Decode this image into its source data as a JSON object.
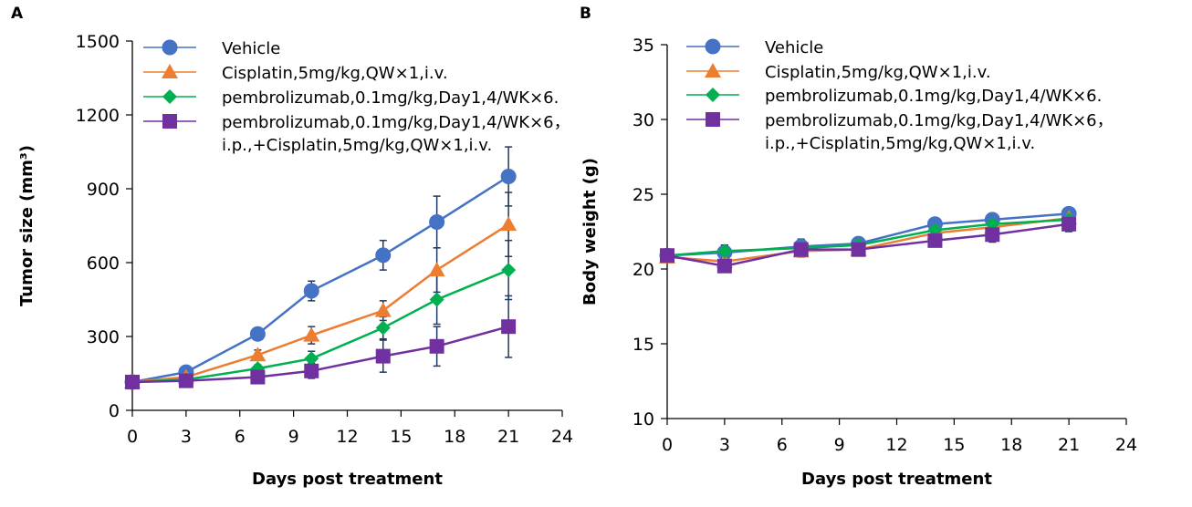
{
  "colors": {
    "series": [
      "#4472C4",
      "#ED7D31",
      "#00B050",
      "#7030A0"
    ],
    "error_bars": "#1F3864",
    "axis": "#000000"
  },
  "chart_data": [
    {
      "panel_label": "A",
      "type": "line",
      "xlabel": "Days post treatment",
      "ylabel": "Tumor size (mm³)",
      "xlim": [
        0,
        24
      ],
      "ylim": [
        0,
        1500
      ],
      "xticks": [
        "0",
        "3",
        "6",
        "9",
        "12",
        "15",
        "18",
        "21",
        "24"
      ],
      "yticks": [
        "0",
        "300",
        "600",
        "900",
        "1200",
        "1500"
      ],
      "grid": false,
      "legend_position": "top",
      "x": [
        0,
        3,
        7,
        10,
        14,
        17,
        21
      ],
      "series": [
        {
          "name": "Vehicle",
          "marker": "circle",
          "values": [
            115,
            155,
            310,
            485,
            630,
            765,
            950
          ],
          "errors": [
            8,
            12,
            18,
            40,
            60,
            105,
            120
          ]
        },
        {
          "name": "Cisplatin,5mg/kg,QW×1,i.v.",
          "marker": "triangle",
          "values": [
            115,
            135,
            225,
            305,
            405,
            570,
            755
          ],
          "errors": [
            8,
            10,
            20,
            35,
            40,
            90,
            130
          ]
        },
        {
          "name": "pembrolizumab,0.1mg/kg,Day1,4/WK×6.",
          "marker": "diamond",
          "values": [
            115,
            125,
            170,
            210,
            335,
            450,
            570
          ],
          "errors": [
            8,
            10,
            15,
            30,
            45,
            100,
            120
          ]
        },
        {
          "name": "pembrolizumab,0.1mg/kg,Day1,4/WK×6，\ni.p.,+Cisplatin,5mg/kg,QW×1,i.v.",
          "marker": "square",
          "values": [
            115,
            120,
            135,
            160,
            220,
            260,
            340
          ],
          "errors": [
            8,
            10,
            15,
            30,
            65,
            80,
            125
          ]
        }
      ]
    },
    {
      "panel_label": "B",
      "type": "line",
      "xlabel": "Days post treatment",
      "ylabel": "Body weight (g)",
      "xlim": [
        0,
        24
      ],
      "ylim": [
        10,
        35
      ],
      "xticks": [
        "0",
        "3",
        "6",
        "9",
        "12",
        "15",
        "18",
        "21",
        "24"
      ],
      "yticks": [
        "10",
        "15",
        "20",
        "25",
        "30",
        "35"
      ],
      "grid": false,
      "legend_position": "top",
      "x": [
        0,
        3,
        7,
        10,
        14,
        17,
        21
      ],
      "series": [
        {
          "name": "Vehicle",
          "marker": "circle",
          "values": [
            20.9,
            21.1,
            21.5,
            21.7,
            23.0,
            23.3,
            23.7
          ],
          "errors": [
            0.2,
            0.5,
            0.5,
            0.3,
            0.4,
            0.4,
            0.4
          ]
        },
        {
          "name": "Cisplatin,5mg/kg,QW×1,i.v.",
          "marker": "triangle",
          "values": [
            20.8,
            20.5,
            21.2,
            21.3,
            22.4,
            22.8,
            23.4
          ],
          "errors": [
            0.2,
            0.4,
            0.4,
            0.3,
            0.4,
            0.4,
            0.5
          ]
        },
        {
          "name": "pembrolizumab,0.1mg/kg,Day1,4/WK×6.",
          "marker": "diamond",
          "values": [
            20.9,
            21.2,
            21.4,
            21.6,
            22.6,
            23.0,
            23.3
          ],
          "errors": [
            0.2,
            0.4,
            0.5,
            0.3,
            0.4,
            0.4,
            0.5
          ]
        },
        {
          "name": "pembrolizumab,0.1mg/kg,Day1,4/WK×6，\ni.p.,+Cisplatin,5mg/kg,QW×1,i.v.",
          "marker": "square",
          "values": [
            20.9,
            20.2,
            21.3,
            21.3,
            21.9,
            22.3,
            23.0
          ],
          "errors": [
            0.2,
            0.3,
            0.4,
            0.3,
            0.4,
            0.5,
            0.5
          ]
        }
      ]
    }
  ]
}
